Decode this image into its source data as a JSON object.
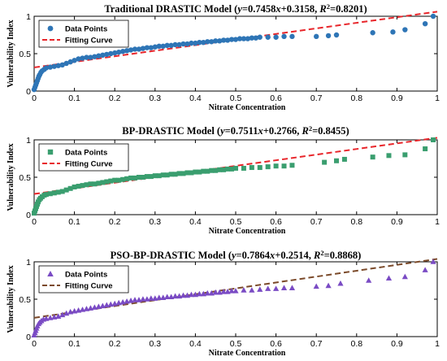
{
  "chart_data": [
    {
      "type": "scatter",
      "title": {
        "prefix": "Traditional DRASTIC Model (",
        "y": "y",
        "eq": "=0.7458",
        "x": "x",
        "eq2": "+0.3158, ",
        "r": "R",
        "sup": "2",
        "tail": "=0.8201)"
      },
      "xlabel": "Nitrate Concentration",
      "ylabel": "Vulnerability Index",
      "xlim": [
        0,
        1
      ],
      "ylim": [
        0,
        1
      ],
      "xticks": [
        "0",
        "0.1",
        "0.2",
        "0.3",
        "0.4",
        "0.5",
        "0.6",
        "0.7",
        "0.8",
        "0.9",
        "1"
      ],
      "yticks": [
        "0",
        "0.5",
        "1"
      ],
      "legend": {
        "points_label": "Data Points",
        "curve_label": "Fitting Curve",
        "position": "top-left"
      },
      "marker": "circle",
      "point_color": "#2e75b6",
      "line_color": "#e8262b",
      "fit": {
        "slope": 0.7458,
        "intercept": 0.3158
      },
      "points": [
        [
          0.0,
          0.02
        ],
        [
          0.002,
          0.05
        ],
        [
          0.004,
          0.08
        ],
        [
          0.006,
          0.11
        ],
        [
          0.008,
          0.14
        ],
        [
          0.01,
          0.17
        ],
        [
          0.012,
          0.2
        ],
        [
          0.014,
          0.22
        ],
        [
          0.017,
          0.25
        ],
        [
          0.02,
          0.27
        ],
        [
          0.025,
          0.29
        ],
        [
          0.03,
          0.31
        ],
        [
          0.04,
          0.32
        ],
        [
          0.05,
          0.33
        ],
        [
          0.06,
          0.34
        ],
        [
          0.07,
          0.35
        ],
        [
          0.08,
          0.37
        ],
        [
          0.09,
          0.39
        ],
        [
          0.1,
          0.41
        ],
        [
          0.11,
          0.43
        ],
        [
          0.12,
          0.44
        ],
        [
          0.13,
          0.45
        ],
        [
          0.14,
          0.45
        ],
        [
          0.15,
          0.46
        ],
        [
          0.16,
          0.47
        ],
        [
          0.17,
          0.48
        ],
        [
          0.18,
          0.49
        ],
        [
          0.19,
          0.5
        ],
        [
          0.2,
          0.51
        ],
        [
          0.21,
          0.52
        ],
        [
          0.22,
          0.53
        ],
        [
          0.23,
          0.54
        ],
        [
          0.24,
          0.55
        ],
        [
          0.25,
          0.56
        ],
        [
          0.26,
          0.56
        ],
        [
          0.27,
          0.57
        ],
        [
          0.28,
          0.58
        ],
        [
          0.29,
          0.58
        ],
        [
          0.3,
          0.59
        ],
        [
          0.31,
          0.6
        ],
        [
          0.32,
          0.6
        ],
        [
          0.33,
          0.61
        ],
        [
          0.34,
          0.61
        ],
        [
          0.35,
          0.62
        ],
        [
          0.36,
          0.62
        ],
        [
          0.37,
          0.63
        ],
        [
          0.38,
          0.63
        ],
        [
          0.39,
          0.64
        ],
        [
          0.4,
          0.64
        ],
        [
          0.41,
          0.65
        ],
        [
          0.42,
          0.65
        ],
        [
          0.43,
          0.66
        ],
        [
          0.44,
          0.66
        ],
        [
          0.45,
          0.67
        ],
        [
          0.46,
          0.67
        ],
        [
          0.47,
          0.68
        ],
        [
          0.48,
          0.68
        ],
        [
          0.49,
          0.69
        ],
        [
          0.5,
          0.69
        ],
        [
          0.51,
          0.7
        ],
        [
          0.52,
          0.7
        ],
        [
          0.53,
          0.7
        ],
        [
          0.54,
          0.71
        ],
        [
          0.55,
          0.71
        ],
        [
          0.56,
          0.72
        ],
        [
          0.58,
          0.72
        ],
        [
          0.6,
          0.72
        ],
        [
          0.62,
          0.73
        ],
        [
          0.64,
          0.73
        ],
        [
          0.7,
          0.73
        ],
        [
          0.73,
          0.74
        ],
        [
          0.75,
          0.75
        ],
        [
          0.84,
          0.78
        ],
        [
          0.89,
          0.79
        ],
        [
          0.92,
          0.82
        ],
        [
          0.97,
          0.9
        ],
        [
          0.99,
          1.0
        ]
      ]
    },
    {
      "type": "scatter",
      "title": {
        "prefix": "BP-DRASTIC Model (",
        "y": "y",
        "eq": "=0.7511",
        "x": "x",
        "eq2": "+0.2766, ",
        "r": "R",
        "sup": "2",
        "tail": "=0.8455)"
      },
      "xlabel": "Nitrate Concentration",
      "ylabel": "Vulnerability Index",
      "xlim": [
        0,
        1
      ],
      "ylim": [
        0,
        1
      ],
      "xticks": [
        "0",
        "0.1",
        "0.2",
        "0.3",
        "0.4",
        "0.5",
        "0.6",
        "0.7",
        "0.8",
        "0.9",
        "1"
      ],
      "yticks": [
        "0",
        "0.5",
        "1"
      ],
      "legend": {
        "points_label": "Data Points",
        "curve_label": "Fitting Curve",
        "position": "top-left"
      },
      "marker": "square",
      "point_color": "#3a9e6f",
      "line_color": "#e8262b",
      "fit": {
        "slope": 0.7511,
        "intercept": 0.2766
      },
      "points": [
        [
          0.0,
          0.02
        ],
        [
          0.002,
          0.05
        ],
        [
          0.004,
          0.08
        ],
        [
          0.006,
          0.11
        ],
        [
          0.008,
          0.14
        ],
        [
          0.01,
          0.17
        ],
        [
          0.013,
          0.2
        ],
        [
          0.016,
          0.22
        ],
        [
          0.02,
          0.24
        ],
        [
          0.025,
          0.26
        ],
        [
          0.03,
          0.27
        ],
        [
          0.04,
          0.28
        ],
        [
          0.05,
          0.29
        ],
        [
          0.06,
          0.3
        ],
        [
          0.07,
          0.31
        ],
        [
          0.08,
          0.33
        ],
        [
          0.09,
          0.35
        ],
        [
          0.1,
          0.37
        ],
        [
          0.11,
          0.38
        ],
        [
          0.12,
          0.39
        ],
        [
          0.13,
          0.4
        ],
        [
          0.14,
          0.41
        ],
        [
          0.15,
          0.41
        ],
        [
          0.16,
          0.42
        ],
        [
          0.17,
          0.43
        ],
        [
          0.18,
          0.44
        ],
        [
          0.19,
          0.45
        ],
        [
          0.2,
          0.46
        ],
        [
          0.21,
          0.46
        ],
        [
          0.22,
          0.47
        ],
        [
          0.23,
          0.48
        ],
        [
          0.24,
          0.49
        ],
        [
          0.25,
          0.49
        ],
        [
          0.26,
          0.5
        ],
        [
          0.27,
          0.5
        ],
        [
          0.28,
          0.51
        ],
        [
          0.29,
          0.51
        ],
        [
          0.3,
          0.52
        ],
        [
          0.31,
          0.52
        ],
        [
          0.32,
          0.53
        ],
        [
          0.33,
          0.53
        ],
        [
          0.34,
          0.54
        ],
        [
          0.35,
          0.54
        ],
        [
          0.36,
          0.55
        ],
        [
          0.37,
          0.55
        ],
        [
          0.38,
          0.56
        ],
        [
          0.39,
          0.56
        ],
        [
          0.4,
          0.57
        ],
        [
          0.41,
          0.57
        ],
        [
          0.42,
          0.58
        ],
        [
          0.43,
          0.58
        ],
        [
          0.44,
          0.59
        ],
        [
          0.45,
          0.59
        ],
        [
          0.46,
          0.6
        ],
        [
          0.47,
          0.6
        ],
        [
          0.48,
          0.61
        ],
        [
          0.49,
          0.61
        ],
        [
          0.5,
          0.62
        ],
        [
          0.52,
          0.62
        ],
        [
          0.54,
          0.63
        ],
        [
          0.56,
          0.63
        ],
        [
          0.58,
          0.64
        ],
        [
          0.6,
          0.65
        ],
        [
          0.62,
          0.65
        ],
        [
          0.64,
          0.66
        ],
        [
          0.72,
          0.7
        ],
        [
          0.75,
          0.72
        ],
        [
          0.77,
          0.74
        ],
        [
          0.84,
          0.77
        ],
        [
          0.88,
          0.79
        ],
        [
          0.92,
          0.8
        ],
        [
          0.97,
          0.88
        ],
        [
          0.99,
          1.0
        ]
      ]
    },
    {
      "type": "scatter",
      "title": {
        "prefix": "PSO-BP-DRASTIC Model (",
        "y": "y",
        "eq": "=0.7864",
        "x": "x",
        "eq2": "+0.2514, ",
        "r": "R",
        "sup": "2",
        "tail": "=0.8868)"
      },
      "xlabel": "Nitrate Concentration",
      "ylabel": "Vulnerability Index",
      "xlim": [
        0,
        1
      ],
      "ylim": [
        0,
        1
      ],
      "xticks": [
        "0",
        "0.1",
        "0.2",
        "0.3",
        "0.4",
        "0.5",
        "0.6",
        "0.7",
        "0.8",
        "0.9",
        "1"
      ],
      "yticks": [
        "0",
        "0.5",
        "1"
      ],
      "legend": {
        "points_label": "Data Points",
        "curve_label": "Fitting Curve",
        "position": "top-left"
      },
      "marker": "triangle",
      "point_color": "#7a4bc4",
      "line_color": "#7b4a2a",
      "fit": {
        "slope": 0.7864,
        "intercept": 0.2514
      },
      "points": [
        [
          0.0,
          0.02
        ],
        [
          0.002,
          0.05
        ],
        [
          0.004,
          0.08
        ],
        [
          0.006,
          0.11
        ],
        [
          0.008,
          0.14
        ],
        [
          0.011,
          0.17
        ],
        [
          0.014,
          0.19
        ],
        [
          0.018,
          0.21
        ],
        [
          0.023,
          0.23
        ],
        [
          0.03,
          0.24
        ],
        [
          0.04,
          0.25
        ],
        [
          0.05,
          0.26
        ],
        [
          0.06,
          0.27
        ],
        [
          0.07,
          0.29
        ],
        [
          0.08,
          0.31
        ],
        [
          0.09,
          0.33
        ],
        [
          0.1,
          0.34
        ],
        [
          0.11,
          0.35
        ],
        [
          0.12,
          0.36
        ],
        [
          0.13,
          0.37
        ],
        [
          0.14,
          0.38
        ],
        [
          0.15,
          0.39
        ],
        [
          0.16,
          0.4
        ],
        [
          0.17,
          0.41
        ],
        [
          0.18,
          0.42
        ],
        [
          0.19,
          0.43
        ],
        [
          0.2,
          0.44
        ],
        [
          0.21,
          0.45
        ],
        [
          0.22,
          0.46
        ],
        [
          0.23,
          0.47
        ],
        [
          0.24,
          0.48
        ],
        [
          0.25,
          0.49
        ],
        [
          0.26,
          0.49
        ],
        [
          0.27,
          0.5
        ],
        [
          0.28,
          0.5
        ],
        [
          0.29,
          0.51
        ],
        [
          0.3,
          0.51
        ],
        [
          0.31,
          0.52
        ],
        [
          0.32,
          0.52
        ],
        [
          0.33,
          0.53
        ],
        [
          0.34,
          0.53
        ],
        [
          0.35,
          0.54
        ],
        [
          0.36,
          0.54
        ],
        [
          0.37,
          0.55
        ],
        [
          0.38,
          0.55
        ],
        [
          0.39,
          0.56
        ],
        [
          0.4,
          0.56
        ],
        [
          0.41,
          0.57
        ],
        [
          0.42,
          0.57
        ],
        [
          0.43,
          0.58
        ],
        [
          0.44,
          0.58
        ],
        [
          0.45,
          0.59
        ],
        [
          0.46,
          0.59
        ],
        [
          0.47,
          0.6
        ],
        [
          0.48,
          0.6
        ],
        [
          0.49,
          0.61
        ],
        [
          0.5,
          0.61
        ],
        [
          0.52,
          0.62
        ],
        [
          0.54,
          0.62
        ],
        [
          0.56,
          0.63
        ],
        [
          0.58,
          0.64
        ],
        [
          0.6,
          0.64
        ],
        [
          0.62,
          0.65
        ],
        [
          0.64,
          0.65
        ],
        [
          0.7,
          0.67
        ],
        [
          0.73,
          0.68
        ],
        [
          0.76,
          0.71
        ],
        [
          0.83,
          0.75
        ],
        [
          0.88,
          0.78
        ],
        [
          0.92,
          0.8
        ],
        [
          0.97,
          0.89
        ],
        [
          0.99,
          1.0
        ]
      ]
    }
  ]
}
